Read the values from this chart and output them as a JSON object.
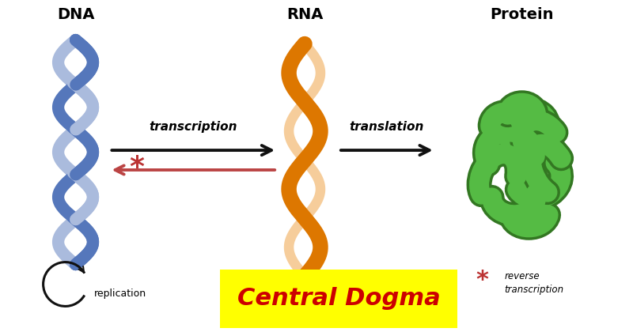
{
  "bg_color": "#ffffff",
  "title_dna": "DNA",
  "title_rna": "RNA",
  "title_protein": "Protein",
  "label_transcription": "transcription",
  "label_translation": "translation",
  "label_replication": "replication",
  "label_central_dogma": "Central Dogma",
  "dna_color_dark": "#5577bb",
  "dna_color_mid": "#6688cc",
  "dna_color_light": "#aabbdd",
  "rna_color_dark": "#dd7700",
  "rna_color_light": "#f5c890",
  "protein_color": "#55bb44",
  "protein_outline": "#337722",
  "arrow_forward_color": "#111111",
  "arrow_reverse_color": "#bb4444",
  "star_color": "#bb3333",
  "central_dogma_bg": "#ffff00",
  "central_dogma_text": "#cc0000",
  "header_fontsize": 14,
  "label_fontsize": 11,
  "central_dogma_fontsize": 22
}
